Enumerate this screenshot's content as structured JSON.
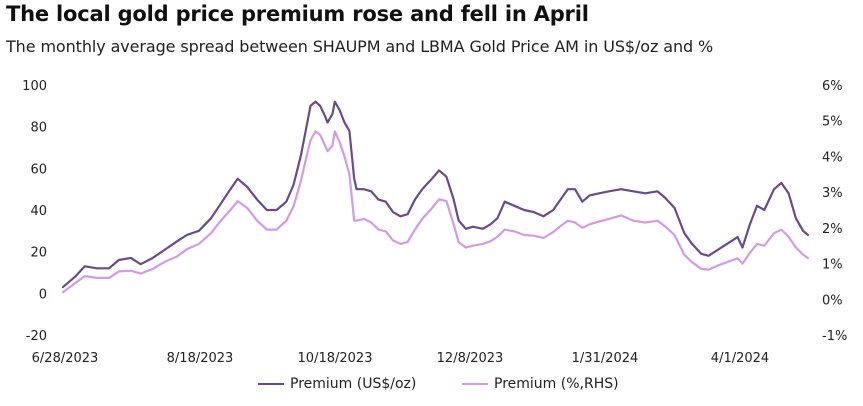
{
  "header": {
    "title": "The local gold price premium rose and fell in April",
    "subtitle": "The monthly average spread between SHAUPM and LBMA Gold Price AM in US$/oz and %"
  },
  "colors": {
    "usd_series": "#6b4a8c",
    "pct_series": "#d29be4",
    "gridline": "#ffffff",
    "text": "#222222"
  },
  "legend": {
    "usd_label": "Premium (US$/oz)",
    "pct_label": "Premium (%,RHS)"
  },
  "chart_data": {
    "type": "line",
    "title": "The local gold price premium rose and fell in April",
    "subtitle": "The monthly average spread between SHAUPM and LBMA Gold Price AM in US$/oz and %",
    "x_ticks": [
      "6/28/2023",
      "8/18/2023",
      "10/18/2023",
      "12/8/2023",
      "1/31/2024",
      "4/1/2024"
    ],
    "x_range": [
      "2023-06-28",
      "2024-04-30"
    ],
    "y_left": {
      "ylim": [
        -20,
        100
      ],
      "ticks": [
        "-20",
        "0",
        "20",
        "40",
        "60",
        "80",
        "100"
      ]
    },
    "y_right": {
      "ylim": [
        -1,
        6
      ],
      "ticks": [
        "-1%",
        "0%",
        "1%",
        "2%",
        "3%",
        "4%",
        "5%",
        "6%"
      ]
    },
    "grid": false,
    "legend_position": "bottom",
    "series": [
      {
        "name": "Premium (US$/oz)",
        "axis": "left",
        "points": [
          [
            "2023-06-28",
            3
          ],
          [
            "2023-07-03",
            8
          ],
          [
            "2023-07-07",
            13
          ],
          [
            "2023-07-12",
            12
          ],
          [
            "2023-07-17",
            12
          ],
          [
            "2023-07-21",
            16
          ],
          [
            "2023-07-26",
            17
          ],
          [
            "2023-07-30",
            14
          ],
          [
            "2023-08-04",
            17
          ],
          [
            "2023-08-09",
            21
          ],
          [
            "2023-08-14",
            25
          ],
          [
            "2023-08-18",
            28
          ],
          [
            "2023-08-23",
            30
          ],
          [
            "2023-08-28",
            36
          ],
          [
            "2023-09-01",
            43
          ],
          [
            "2023-09-05",
            50
          ],
          [
            "2023-09-08",
            55
          ],
          [
            "2023-09-12",
            51
          ],
          [
            "2023-09-16",
            45
          ],
          [
            "2023-09-20",
            40
          ],
          [
            "2023-09-24",
            40
          ],
          [
            "2023-09-28",
            44
          ],
          [
            "2023-10-01",
            52
          ],
          [
            "2023-10-04",
            66
          ],
          [
            "2023-10-06",
            78
          ],
          [
            "2023-10-08",
            90
          ],
          [
            "2023-10-10",
            92
          ],
          [
            "2023-10-12",
            90
          ],
          [
            "2023-10-14",
            85
          ],
          [
            "2023-10-15",
            82
          ],
          [
            "2023-10-17",
            86
          ],
          [
            "2023-10-18",
            92
          ],
          [
            "2023-10-20",
            88
          ],
          [
            "2023-10-22",
            82
          ],
          [
            "2023-10-24",
            78
          ],
          [
            "2023-10-26",
            55
          ],
          [
            "2023-10-27",
            50
          ],
          [
            "2023-10-30",
            50
          ],
          [
            "2023-11-02",
            49
          ],
          [
            "2023-11-05",
            45
          ],
          [
            "2023-11-08",
            44
          ],
          [
            "2023-11-11",
            39
          ],
          [
            "2023-11-14",
            37
          ],
          [
            "2023-11-17",
            38
          ],
          [
            "2023-11-20",
            45
          ],
          [
            "2023-11-23",
            50
          ],
          [
            "2023-11-27",
            55
          ],
          [
            "2023-11-30",
            59
          ],
          [
            "2023-12-03",
            56
          ],
          [
            "2023-12-06",
            45
          ],
          [
            "2023-12-08",
            35
          ],
          [
            "2023-12-11",
            31
          ],
          [
            "2023-12-14",
            32
          ],
          [
            "2023-12-18",
            31
          ],
          [
            "2023-12-21",
            33
          ],
          [
            "2023-12-24",
            36
          ],
          [
            "2023-12-27",
            44
          ],
          [
            "2023-12-31",
            42
          ],
          [
            "2024-01-04",
            40
          ],
          [
            "2024-01-08",
            39
          ],
          [
            "2024-01-12",
            37
          ],
          [
            "2024-01-16",
            40
          ],
          [
            "2024-01-19",
            45
          ],
          [
            "2024-01-22",
            50
          ],
          [
            "2024-01-25",
            50
          ],
          [
            "2024-01-28",
            44
          ],
          [
            "2024-01-31",
            47
          ],
          [
            "2024-02-04",
            48
          ],
          [
            "2024-02-08",
            49
          ],
          [
            "2024-02-13",
            50
          ],
          [
            "2024-02-18",
            49
          ],
          [
            "2024-02-23",
            48
          ],
          [
            "2024-02-28",
            49
          ],
          [
            "2024-03-02",
            46
          ],
          [
            "2024-03-06",
            41
          ],
          [
            "2024-03-10",
            29
          ],
          [
            "2024-03-13",
            24
          ],
          [
            "2024-03-17",
            19
          ],
          [
            "2024-03-20",
            18
          ],
          [
            "2024-03-24",
            21
          ],
          [
            "2024-03-28",
            24
          ],
          [
            "2024-04-01",
            27
          ],
          [
            "2024-04-03",
            22
          ],
          [
            "2024-04-06",
            33
          ],
          [
            "2024-04-09",
            42
          ],
          [
            "2024-04-12",
            40
          ],
          [
            "2024-04-16",
            50
          ],
          [
            "2024-04-19",
            53
          ],
          [
            "2024-04-22",
            48
          ],
          [
            "2024-04-25",
            36
          ],
          [
            "2024-04-28",
            30
          ],
          [
            "2024-04-30",
            28
          ]
        ]
      },
      {
        "name": "Premium (%,RHS)",
        "axis": "right",
        "points": [
          [
            "2023-06-28",
            0.2
          ],
          [
            "2023-07-03",
            0.45
          ],
          [
            "2023-07-07",
            0.65
          ],
          [
            "2023-07-12",
            0.6
          ],
          [
            "2023-07-17",
            0.6
          ],
          [
            "2023-07-21",
            0.78
          ],
          [
            "2023-07-26",
            0.8
          ],
          [
            "2023-07-30",
            0.72
          ],
          [
            "2023-08-04",
            0.85
          ],
          [
            "2023-08-09",
            1.05
          ],
          [
            "2023-08-14",
            1.2
          ],
          [
            "2023-08-18",
            1.4
          ],
          [
            "2023-08-23",
            1.55
          ],
          [
            "2023-08-28",
            1.85
          ],
          [
            "2023-09-01",
            2.2
          ],
          [
            "2023-09-05",
            2.5
          ],
          [
            "2023-09-08",
            2.75
          ],
          [
            "2023-09-12",
            2.55
          ],
          [
            "2023-09-16",
            2.2
          ],
          [
            "2023-09-20",
            1.95
          ],
          [
            "2023-09-24",
            1.95
          ],
          [
            "2023-09-28",
            2.2
          ],
          [
            "2023-10-01",
            2.6
          ],
          [
            "2023-10-04",
            3.3
          ],
          [
            "2023-10-06",
            3.9
          ],
          [
            "2023-10-08",
            4.45
          ],
          [
            "2023-10-10",
            4.7
          ],
          [
            "2023-10-12",
            4.6
          ],
          [
            "2023-10-14",
            4.3
          ],
          [
            "2023-10-15",
            4.15
          ],
          [
            "2023-10-17",
            4.3
          ],
          [
            "2023-10-18",
            4.7
          ],
          [
            "2023-10-20",
            4.4
          ],
          [
            "2023-10-22",
            4.0
          ],
          [
            "2023-10-24",
            3.5
          ],
          [
            "2023-10-26",
            2.2
          ],
          [
            "2023-10-27",
            2.2
          ],
          [
            "2023-10-30",
            2.25
          ],
          [
            "2023-11-02",
            2.15
          ],
          [
            "2023-11-05",
            1.95
          ],
          [
            "2023-11-08",
            1.9
          ],
          [
            "2023-11-11",
            1.65
          ],
          [
            "2023-11-14",
            1.55
          ],
          [
            "2023-11-17",
            1.6
          ],
          [
            "2023-11-20",
            1.95
          ],
          [
            "2023-11-23",
            2.25
          ],
          [
            "2023-11-27",
            2.55
          ],
          [
            "2023-11-30",
            2.8
          ],
          [
            "2023-12-03",
            2.75
          ],
          [
            "2023-12-06",
            2.1
          ],
          [
            "2023-12-08",
            1.6
          ],
          [
            "2023-12-11",
            1.45
          ],
          [
            "2023-12-14",
            1.5
          ],
          [
            "2023-12-18",
            1.55
          ],
          [
            "2023-12-21",
            1.62
          ],
          [
            "2023-12-24",
            1.75
          ],
          [
            "2023-12-27",
            1.95
          ],
          [
            "2023-12-31",
            1.9
          ],
          [
            "2024-01-04",
            1.8
          ],
          [
            "2024-01-08",
            1.78
          ],
          [
            "2024-01-12",
            1.72
          ],
          [
            "2024-01-16",
            1.88
          ],
          [
            "2024-01-19",
            2.05
          ],
          [
            "2024-01-22",
            2.2
          ],
          [
            "2024-01-25",
            2.15
          ],
          [
            "2024-01-28",
            2.0
          ],
          [
            "2024-01-31",
            2.1
          ],
          [
            "2024-02-04",
            2.18
          ],
          [
            "2024-02-08",
            2.25
          ],
          [
            "2024-02-13",
            2.35
          ],
          [
            "2024-02-18",
            2.2
          ],
          [
            "2024-02-23",
            2.15
          ],
          [
            "2024-02-28",
            2.2
          ],
          [
            "2024-03-02",
            2.05
          ],
          [
            "2024-03-06",
            1.8
          ],
          [
            "2024-03-10",
            1.25
          ],
          [
            "2024-03-13",
            1.05
          ],
          [
            "2024-03-17",
            0.85
          ],
          [
            "2024-03-20",
            0.83
          ],
          [
            "2024-03-24",
            0.95
          ],
          [
            "2024-03-28",
            1.05
          ],
          [
            "2024-04-01",
            1.15
          ],
          [
            "2024-04-03",
            1.0
          ],
          [
            "2024-04-06",
            1.3
          ],
          [
            "2024-04-09",
            1.55
          ],
          [
            "2024-04-12",
            1.5
          ],
          [
            "2024-04-16",
            1.85
          ],
          [
            "2024-04-19",
            1.95
          ],
          [
            "2024-04-22",
            1.75
          ],
          [
            "2024-04-25",
            1.45
          ],
          [
            "2024-04-28",
            1.25
          ],
          [
            "2024-04-30",
            1.15
          ]
        ]
      }
    ]
  }
}
